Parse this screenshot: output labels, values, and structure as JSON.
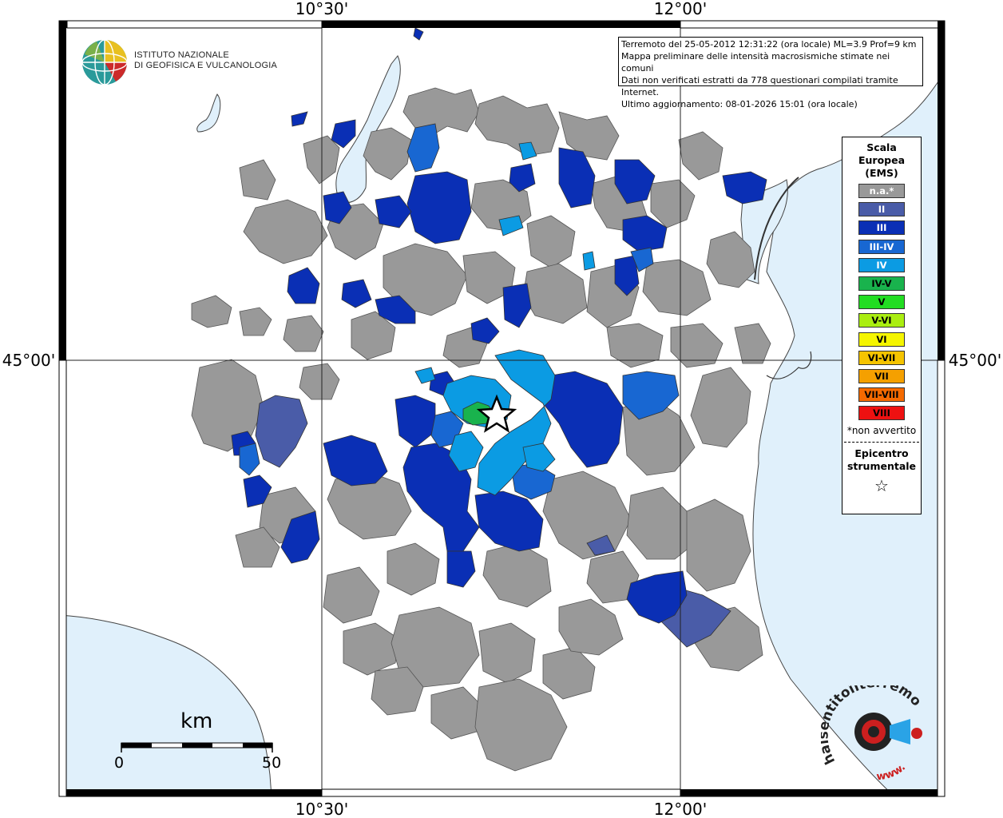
{
  "coords": {
    "top": [
      "10°30'",
      "12°00'"
    ],
    "bottom": [
      "10°30'",
      "12°00'"
    ],
    "left": "45°00'",
    "right": "45°00'"
  },
  "institute": {
    "line1": "ISTITUTO NAZIONALE",
    "line2": "DI GEOFISICA E VULCANOLOGIA"
  },
  "info": {
    "line1": "Terremoto del 25-05-2012 12:31:22 (ora locale) ML=3.9 Prof=9 km",
    "line2": "Mappa preliminare delle intensità macrosismiche stimate nei comuni",
    "line3": "Dati non verificati estratti da 778 questionari compilati tramite Internet.",
    "line4": "Ultimo aggiornamento: 08-01-2026 15:01 (ora locale)"
  },
  "legend": {
    "title_lines": [
      "Scala",
      "Europea",
      "(EMS)"
    ],
    "items": [
      {
        "label": "n.a.*",
        "color": "#999999",
        "text_color": "#ffffff"
      },
      {
        "label": "II",
        "color": "#4a5ca8",
        "text_color": "#ffffff"
      },
      {
        "label": "III",
        "color": "#0a2fb5",
        "text_color": "#ffffff"
      },
      {
        "label": "III-IV",
        "color": "#1867d2",
        "text_color": "#ffffff"
      },
      {
        "label": "IV",
        "color": "#0b9be3",
        "text_color": "#ffffff"
      },
      {
        "label": "IV-V",
        "color": "#19b34d",
        "text_color": "#000000"
      },
      {
        "label": "V",
        "color": "#22dd22",
        "text_color": "#000000"
      },
      {
        "label": "V-VI",
        "color": "#aaee11",
        "text_color": "#000000"
      },
      {
        "label": "VI",
        "color": "#f5f500",
        "text_color": "#000000"
      },
      {
        "label": "VI-VII",
        "color": "#f5c400",
        "text_color": "#000000"
      },
      {
        "label": "VII",
        "color": "#f5a000",
        "text_color": "#000000"
      },
      {
        "label": "VII-VIII",
        "color": "#f56a00",
        "text_color": "#000000"
      },
      {
        "label": "VIII",
        "color": "#ee1111",
        "text_color": "#000000"
      }
    ],
    "note": "*non avvertito",
    "epicenter_lines": [
      "Epicentro",
      "strumentale"
    ],
    "epicenter_symbol": "☆"
  },
  "scalebar": {
    "unit": "km",
    "min": "0",
    "max": "50"
  },
  "colors": {
    "water": "#e0f0fb",
    "na": "#999999",
    "ii": "#4a5ca8",
    "iii": "#0a2fb5",
    "iii_iv": "#1867d2",
    "iv": "#0b9be3",
    "iv_v": "#19b34d"
  },
  "brand": {
    "text": "haisentitoilterremoto.it",
    "prefix": "www."
  }
}
